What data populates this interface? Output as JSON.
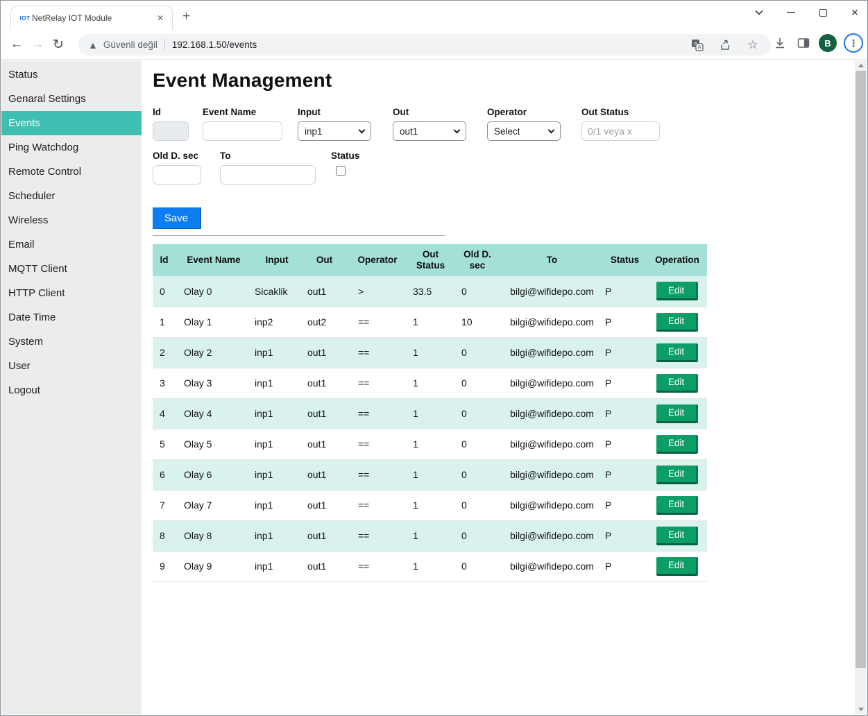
{
  "browser": {
    "tab": {
      "title": "NetRelay IOT Module",
      "favicon_text": "IOT",
      "close_glyph": "✕"
    },
    "new_tab_label": "+",
    "address": {
      "security_text": "Güvenli değil",
      "url": "192.168.1.50/events"
    },
    "avatar_letter": "B",
    "window_close_glyph": "✕"
  },
  "sidebar": {
    "items": [
      {
        "label": "Status",
        "active": false
      },
      {
        "label": "Genaral Settings",
        "active": false
      },
      {
        "label": "Events",
        "active": true
      },
      {
        "label": "Ping Watchdog",
        "active": false
      },
      {
        "label": "Remote Control",
        "active": false
      },
      {
        "label": "Scheduler",
        "active": false
      },
      {
        "label": "Wireless",
        "active": false
      },
      {
        "label": "Email",
        "active": false
      },
      {
        "label": "MQTT Client",
        "active": false
      },
      {
        "label": "HTTP Client",
        "active": false
      },
      {
        "label": "Date Time",
        "active": false
      },
      {
        "label": "System",
        "active": false
      },
      {
        "label": "User",
        "active": false
      },
      {
        "label": "Logout",
        "active": false
      }
    ]
  },
  "main": {
    "title": "Event Management",
    "form": {
      "id": {
        "label": "Id",
        "value": ""
      },
      "event_name": {
        "label": "Event Name",
        "value": ""
      },
      "input": {
        "label": "Input",
        "selected": "inp1"
      },
      "out": {
        "label": "Out",
        "selected": "out1"
      },
      "operator": {
        "label": "Operator",
        "selected": "Select"
      },
      "out_status": {
        "label": "Out Status",
        "placeholder": "0/1 veya x",
        "value": ""
      },
      "old_d_sec": {
        "label": "Old D. sec",
        "value": ""
      },
      "to": {
        "label": "To",
        "value": ""
      },
      "status": {
        "label": "Status",
        "checked": false
      },
      "save_label": "Save"
    },
    "table": {
      "headers": [
        "Id",
        "Event Name",
        "Input",
        "Out",
        "Operator",
        "Out Status",
        "Old D. sec",
        "To",
        "Status",
        "Operation"
      ],
      "edit_label": "Edit",
      "rows": [
        [
          "0",
          "Olay 0",
          "Sicaklik",
          "out1",
          ">",
          "33.5",
          "0",
          "bilgi@wifidepo.com",
          "P"
        ],
        [
          "1",
          "Olay 1",
          "inp2",
          "out2",
          "==",
          "1",
          "10",
          "bilgi@wifidepo.com",
          "P"
        ],
        [
          "2",
          "Olay 2",
          "inp1",
          "out1",
          "==",
          "1",
          "0",
          "bilgi@wifidepo.com",
          "P"
        ],
        [
          "3",
          "Olay 3",
          "inp1",
          "out1",
          "==",
          "1",
          "0",
          "bilgi@wifidepo.com",
          "P"
        ],
        [
          "4",
          "Olay 4",
          "inp1",
          "out1",
          "==",
          "1",
          "0",
          "bilgi@wifidepo.com",
          "P"
        ],
        [
          "5",
          "Olay 5",
          "inp1",
          "out1",
          "==",
          "1",
          "0",
          "bilgi@wifidepo.com",
          "P"
        ],
        [
          "6",
          "Olay 6",
          "inp1",
          "out1",
          "==",
          "1",
          "0",
          "bilgi@wifidepo.com",
          "P"
        ],
        [
          "7",
          "Olay 7",
          "inp1",
          "out1",
          "==",
          "1",
          "0",
          "bilgi@wifidepo.com",
          "P"
        ],
        [
          "8",
          "Olay 8",
          "inp1",
          "out1",
          "==",
          "1",
          "0",
          "bilgi@wifidepo.com",
          "P"
        ],
        [
          "9",
          "Olay 9",
          "inp1",
          "out1",
          "==",
          "1",
          "0",
          "bilgi@wifidepo.com",
          "P"
        ]
      ]
    }
  },
  "colors": {
    "sidebar_active_teal": "#3fbfb2",
    "table_header_teal": "#a3e0d6",
    "table_row_alt": "#daf2ee",
    "save_blue": "#0d7df0",
    "edit_green": "#0b9e66",
    "avatar_green": "#15603e",
    "menu_ring_blue": "#1a73e8"
  }
}
